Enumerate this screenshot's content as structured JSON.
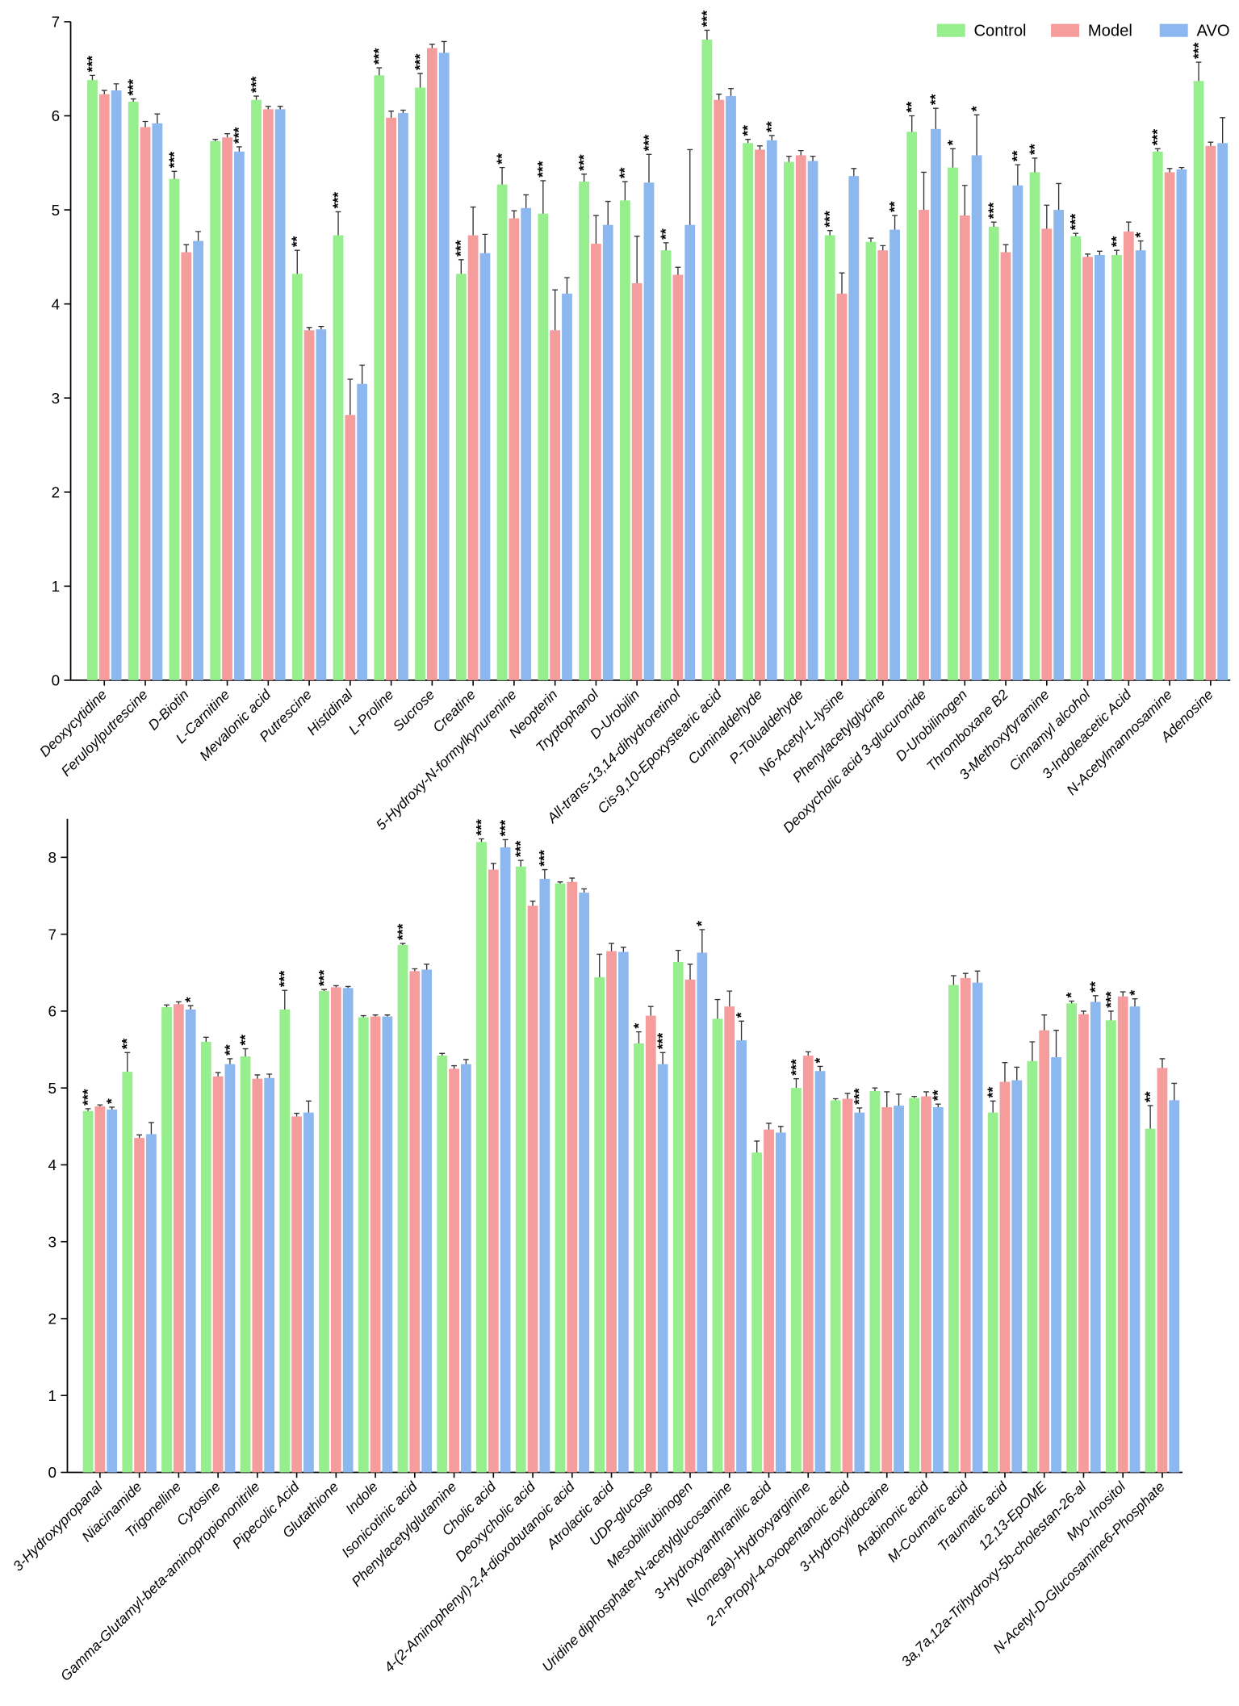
{
  "chart_data": [
    {
      "type": "bar",
      "ylim": [
        0,
        7
      ],
      "yticks": [
        0,
        1,
        2,
        3,
        4,
        5,
        6,
        7
      ],
      "legend": "upper right",
      "categories": [
        "Deoxycytidine",
        "Feruloylputrescine",
        "D-Biotin",
        "L-Carnitine",
        "Mevalonic acid",
        "Putrescine",
        "Histidinal",
        "L-Proline",
        "Sucrose",
        "Creatine",
        "5-Hydroxy-N-formylkynurenine",
        "Neopterin",
        "Tryptophanol",
        "D-Urobilin",
        "All-trans-13,14-dihydroretinol",
        "Cis-9,10-Epoxystearic acid",
        "Cuminaldehyde",
        "P-Tolualdehyde",
        "N6-Acetyl-L-lysine",
        "Phenylacetylglycine",
        "Deoxycholic acid 3-glucuronide",
        "D-Urobilinogen",
        "Thromboxane B2",
        "3-Methoxytyramine",
        "Cinnamyl alcohol",
        "3-Indoleacetic Acid",
        "N-Acetylmannosamine",
        "Adenosine"
      ],
      "series": [
        {
          "name": "Control",
          "color": "#97ee8c",
          "values": [
            6.38,
            6.15,
            5.33,
            5.73,
            6.17,
            4.32,
            4.73,
            6.43,
            6.3,
            4.32,
            5.27,
            4.96,
            5.3,
            5.1,
            4.57,
            6.81,
            5.71,
            5.51,
            4.73,
            4.66,
            5.83,
            5.45,
            4.82,
            5.4,
            4.72,
            4.52,
            5.62,
            6.37
          ],
          "errors": [
            0.05,
            0.03,
            0.08,
            0.02,
            0.04,
            0.25,
            0.25,
            0.08,
            0.15,
            0.15,
            0.18,
            0.35,
            0.08,
            0.2,
            0.08,
            0.1,
            0.04,
            0.06,
            0.05,
            0.04,
            0.17,
            0.2,
            0.05,
            0.15,
            0.03,
            0.05,
            0.03,
            0.2
          ],
          "sig": [
            "***",
            "***",
            "***",
            null,
            "***",
            "**",
            "***",
            "***",
            "***",
            "***",
            "**",
            "***",
            "***",
            "**",
            "**",
            "***",
            "**",
            null,
            "***",
            null,
            "**",
            "*",
            "***",
            "**",
            "***",
            "**",
            "***",
            "***"
          ]
        },
        {
          "name": "Model",
          "color": "#f59c9c",
          "values": [
            6.23,
            5.88,
            4.55,
            5.77,
            6.07,
            3.72,
            2.82,
            5.98,
            6.72,
            4.73,
            4.91,
            3.72,
            4.64,
            4.22,
            4.31,
            6.17,
            5.64,
            5.58,
            4.11,
            4.57,
            5.0,
            4.94,
            4.55,
            4.8,
            4.5,
            4.77,
            5.4,
            5.68
          ],
          "errors": [
            0.04,
            0.06,
            0.08,
            0.04,
            0.03,
            0.03,
            0.38,
            0.07,
            0.04,
            0.3,
            0.08,
            0.43,
            0.3,
            0.5,
            0.08,
            0.06,
            0.04,
            0.05,
            0.22,
            0.05,
            0.4,
            0.32,
            0.08,
            0.25,
            0.03,
            0.1,
            0.04,
            0.04
          ],
          "sig": [
            null,
            null,
            null,
            null,
            null,
            null,
            null,
            null,
            null,
            null,
            null,
            null,
            null,
            null,
            null,
            null,
            null,
            null,
            null,
            null,
            null,
            null,
            null,
            null,
            null,
            null,
            null,
            null
          ]
        },
        {
          "name": "AVO",
          "color": "#8db7ef",
          "values": [
            6.27,
            5.92,
            4.67,
            5.62,
            6.07,
            3.73,
            3.15,
            6.03,
            6.67,
            4.54,
            5.02,
            4.11,
            4.84,
            5.29,
            4.84,
            6.21,
            5.74,
            5.52,
            5.36,
            4.79,
            5.86,
            5.58,
            5.26,
            5.0,
            4.52,
            4.57,
            5.43,
            5.71
          ],
          "errors": [
            0.07,
            0.1,
            0.1,
            0.05,
            0.03,
            0.03,
            0.2,
            0.03,
            0.12,
            0.2,
            0.14,
            0.17,
            0.25,
            0.3,
            0.8,
            0.08,
            0.05,
            0.05,
            0.08,
            0.15,
            0.22,
            0.43,
            0.22,
            0.28,
            0.04,
            0.1,
            0.02,
            0.27
          ],
          "sig": [
            null,
            null,
            null,
            "***",
            null,
            null,
            null,
            null,
            null,
            null,
            null,
            null,
            null,
            "***",
            null,
            null,
            "**",
            null,
            null,
            "**",
            "**",
            "*",
            "**",
            null,
            null,
            "*",
            null,
            null
          ]
        }
      ]
    },
    {
      "type": "bar",
      "ylim": [
        0,
        8.5
      ],
      "yticks": [
        0,
        1,
        2,
        3,
        4,
        5,
        6,
        7,
        8
      ],
      "categories": [
        "3-Hydroxypropanal",
        "Niacinamide",
        "Trigonelline",
        "Cytosine",
        "Gamma-Glutamyl-beta-aminopropiononitrile",
        "Pipecolic Acid",
        "Glutathione",
        "Indole",
        "Isonicotinic acid",
        "Phenylacetylglutamine",
        "Cholic acid",
        "Deoxycholic acid",
        "4-(2-Aminophenyl)-2,4-dioxobutanoic acid",
        "Atrolactic acid",
        "UDP-glucose",
        "Mesobilirubinogen",
        "Uridine diphosphate-N-acetylglucosamine",
        "3-Hydroxyanthranilic acid",
        "N(omega)-Hydroxyarginine",
        "2-n-Propyl-4-oxopentanoic acid",
        "3-Hydroxylidocaine",
        "Arabinonic acid",
        "M-Coumaric acid",
        "Traumatic acid",
        "12,13-EpOME",
        "3a,7a,12a-Trihydroxy-5b-cholestan-26-al",
        "Myo-Inositol",
        "N-Acetyl-D-Glucosamine6-Phosphate"
      ],
      "series": [
        {
          "color": "#97ee8c",
          "values": [
            4.7,
            5.21,
            6.05,
            5.6,
            5.41,
            6.02,
            6.26,
            5.92,
            6.86,
            5.42,
            8.2,
            7.88,
            7.66,
            6.44,
            5.58,
            6.64,
            5.9,
            4.16,
            5.0,
            4.84,
            4.96,
            4.87,
            6.34,
            4.68,
            5.35,
            6.1,
            5.88,
            4.47
          ],
          "errors": [
            0.03,
            0.25,
            0.03,
            0.06,
            0.1,
            0.25,
            0.02,
            0.02,
            0.02,
            0.03,
            0.04,
            0.08,
            0.02,
            0.3,
            0.15,
            0.15,
            0.25,
            0.15,
            0.12,
            0.02,
            0.04,
            0.02,
            0.12,
            0.15,
            0.25,
            0.03,
            0.12,
            0.3
          ],
          "sig": [
            "***",
            "**",
            null,
            null,
            "**",
            "***",
            "***",
            null,
            "***",
            null,
            "***",
            "***",
            null,
            null,
            "*",
            null,
            null,
            null,
            "***",
            null,
            null,
            null,
            null,
            "**",
            null,
            "*",
            "***",
            "**"
          ]
        },
        {
          "color": "#f59c9c",
          "values": [
            4.76,
            4.35,
            6.09,
            5.15,
            5.12,
            4.63,
            6.31,
            5.93,
            6.52,
            5.25,
            7.84,
            7.37,
            7.68,
            6.78,
            5.94,
            6.41,
            6.06,
            4.46,
            5.42,
            4.86,
            4.75,
            4.89,
            6.43,
            5.08,
            5.75,
            5.96,
            6.19,
            5.26
          ],
          "errors": [
            0.02,
            0.04,
            0.03,
            0.05,
            0.05,
            0.04,
            0.02,
            0.02,
            0.03,
            0.04,
            0.08,
            0.06,
            0.05,
            0.1,
            0.12,
            0.2,
            0.2,
            0.08,
            0.05,
            0.07,
            0.2,
            0.06,
            0.06,
            0.25,
            0.2,
            0.04,
            0.06,
            0.12
          ],
          "sig": [
            null,
            null,
            null,
            null,
            null,
            null,
            null,
            null,
            null,
            null,
            null,
            null,
            null,
            null,
            null,
            null,
            null,
            null,
            null,
            null,
            null,
            null,
            null,
            null,
            null,
            null,
            null,
            null
          ]
        },
        {
          "color": "#8db7ef",
          "values": [
            4.72,
            4.4,
            6.02,
            5.31,
            5.13,
            4.68,
            6.3,
            5.93,
            6.54,
            5.31,
            8.13,
            7.72,
            7.54,
            6.77,
            5.31,
            6.76,
            5.62,
            4.42,
            5.22,
            4.68,
            4.77,
            4.75,
            6.37,
            5.1,
            5.4,
            6.12,
            6.06,
            4.84
          ],
          "errors": [
            0.03,
            0.15,
            0.05,
            0.07,
            0.05,
            0.15,
            0.02,
            0.02,
            0.07,
            0.06,
            0.1,
            0.12,
            0.05,
            0.06,
            0.15,
            0.3,
            0.25,
            0.08,
            0.06,
            0.06,
            0.15,
            0.04,
            0.15,
            0.17,
            0.35,
            0.08,
            0.1,
            0.22
          ],
          "sig": [
            "*",
            null,
            "*",
            "**",
            null,
            null,
            null,
            null,
            null,
            null,
            "***",
            "***",
            null,
            null,
            "***",
            "*",
            "*",
            null,
            "*",
            "***",
            null,
            "**",
            null,
            null,
            null,
            "**",
            "*",
            null
          ]
        }
      ]
    }
  ]
}
